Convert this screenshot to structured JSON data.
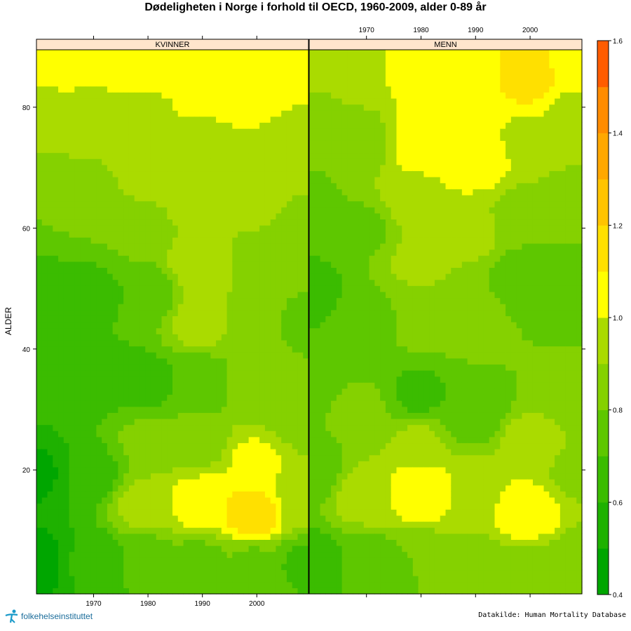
{
  "title": "Dødeligheten i Norge i forhold til OECD, 1960-2009, alder 0-89 år",
  "source_note": "Datakilde: Human Mortality Database",
  "logo_text": "folkehelseinstituttet",
  "chart_data": {
    "type": "heatmap",
    "ylabel": "ALDER",
    "x_range": [
      1960,
      2009
    ],
    "y_range": [
      0,
      89
    ],
    "x_ticks": [
      "1970",
      "1980",
      "1990",
      "2000"
    ],
    "y_ticks": [
      "20",
      "40",
      "60",
      "80"
    ],
    "legend": {
      "breaks": [
        0.4,
        0.5,
        0.6,
        0.7,
        0.8,
        0.9,
        1.0,
        1.1,
        1.2,
        1.3,
        1.4,
        1.5,
        1.6
      ],
      "colors": [
        "#00a600",
        "#1eb100",
        "#3bbc00",
        "#5ec700",
        "#85d100",
        "#aadb00",
        "#ffff00",
        "#ffe000",
        "#ffc400",
        "#ffa800",
        "#ff8c00",
        "#ff5c00"
      ],
      "tick_labels": [
        "0.4",
        "0.6",
        "0.8",
        "1.0",
        "1.2",
        "1.4",
        "1.6"
      ]
    },
    "panels": [
      {
        "name": "KVINNER",
        "points": [
          [
            1960,
            5,
            0.45
          ],
          [
            1960,
            20,
            0.48
          ],
          [
            1960,
            35,
            0.62
          ],
          [
            1960,
            50,
            0.66
          ],
          [
            1960,
            65,
            0.8
          ],
          [
            1960,
            80,
            0.97
          ],
          [
            1960,
            88,
            1.05
          ],
          [
            1970,
            5,
            0.62
          ],
          [
            1970,
            20,
            0.64
          ],
          [
            1970,
            35,
            0.65
          ],
          [
            1970,
            50,
            0.68
          ],
          [
            1970,
            65,
            0.82
          ],
          [
            1970,
            80,
            0.96
          ],
          [
            1970,
            88,
            1.08
          ],
          [
            1980,
            5,
            0.72
          ],
          [
            1980,
            15,
            0.95
          ],
          [
            1980,
            25,
            0.82
          ],
          [
            1980,
            35,
            0.66
          ],
          [
            1980,
            50,
            0.7
          ],
          [
            1980,
            60,
            0.85
          ],
          [
            1980,
            70,
            0.95
          ],
          [
            1980,
            80,
            0.98
          ],
          [
            1980,
            88,
            1.08
          ],
          [
            1990,
            5,
            0.76
          ],
          [
            1990,
            15,
            1.08
          ],
          [
            1990,
            25,
            0.86
          ],
          [
            1990,
            35,
            0.72
          ],
          [
            1990,
            45,
            0.95
          ],
          [
            1990,
            55,
            1.0
          ],
          [
            1990,
            65,
            0.98
          ],
          [
            1990,
            75,
            0.99
          ],
          [
            1990,
            85,
            1.06
          ],
          [
            2000,
            5,
            0.78
          ],
          [
            2000,
            13,
            1.18
          ],
          [
            2000,
            22,
            1.02
          ],
          [
            2000,
            35,
            0.84
          ],
          [
            2000,
            45,
            0.85
          ],
          [
            2000,
            55,
            0.86
          ],
          [
            2000,
            65,
            0.92
          ],
          [
            2000,
            75,
            1.0
          ],
          [
            2000,
            86,
            1.08
          ],
          [
            2009,
            5,
            0.68
          ],
          [
            2009,
            15,
            0.92
          ],
          [
            2009,
            30,
            0.8
          ],
          [
            2009,
            45,
            0.78
          ],
          [
            2009,
            60,
            0.87
          ],
          [
            2009,
            75,
            0.97
          ],
          [
            2009,
            88,
            1.03
          ]
        ]
      },
      {
        "name": "MENN",
        "points": [
          [
            1960,
            5,
            0.62
          ],
          [
            1960,
            20,
            0.72
          ],
          [
            1960,
            35,
            0.78
          ],
          [
            1960,
            50,
            0.65
          ],
          [
            1960,
            65,
            0.78
          ],
          [
            1960,
            80,
            0.88
          ],
          [
            1960,
            88,
            0.96
          ],
          [
            1970,
            5,
            0.72
          ],
          [
            1970,
            16,
            0.95
          ],
          [
            1970,
            30,
            0.82
          ],
          [
            1970,
            45,
            0.75
          ],
          [
            1970,
            60,
            0.78
          ],
          [
            1970,
            75,
            0.85
          ],
          [
            1970,
            88,
            0.98
          ],
          [
            1980,
            5,
            0.8
          ],
          [
            1980,
            17,
            1.1
          ],
          [
            1980,
            25,
            0.92
          ],
          [
            1980,
            33,
            0.68
          ],
          [
            1980,
            45,
            0.82
          ],
          [
            1980,
            55,
            0.92
          ],
          [
            1980,
            65,
            0.98
          ],
          [
            1980,
            75,
            1.06
          ],
          [
            1980,
            88,
            1.05
          ],
          [
            1990,
            5,
            0.82
          ],
          [
            1990,
            16,
            0.98
          ],
          [
            1990,
            30,
            0.7
          ],
          [
            1990,
            45,
            0.85
          ],
          [
            1990,
            60,
            0.92
          ],
          [
            1990,
            72,
            1.08
          ],
          [
            1990,
            85,
            1.05
          ],
          [
            2000,
            5,
            0.84
          ],
          [
            2000,
            13,
            1.1
          ],
          [
            2000,
            25,
            0.94
          ],
          [
            2000,
            40,
            0.8
          ],
          [
            2000,
            52,
            0.72
          ],
          [
            2000,
            62,
            0.82
          ],
          [
            2000,
            75,
            0.98
          ],
          [
            2000,
            86,
            1.16
          ],
          [
            2009,
            5,
            0.8
          ],
          [
            2009,
            20,
            0.88
          ],
          [
            2009,
            35,
            0.82
          ],
          [
            2009,
            50,
            0.72
          ],
          [
            2009,
            65,
            0.85
          ],
          [
            2009,
            80,
            0.98
          ],
          [
            2009,
            88,
            1.05
          ]
        ]
      }
    ]
  }
}
